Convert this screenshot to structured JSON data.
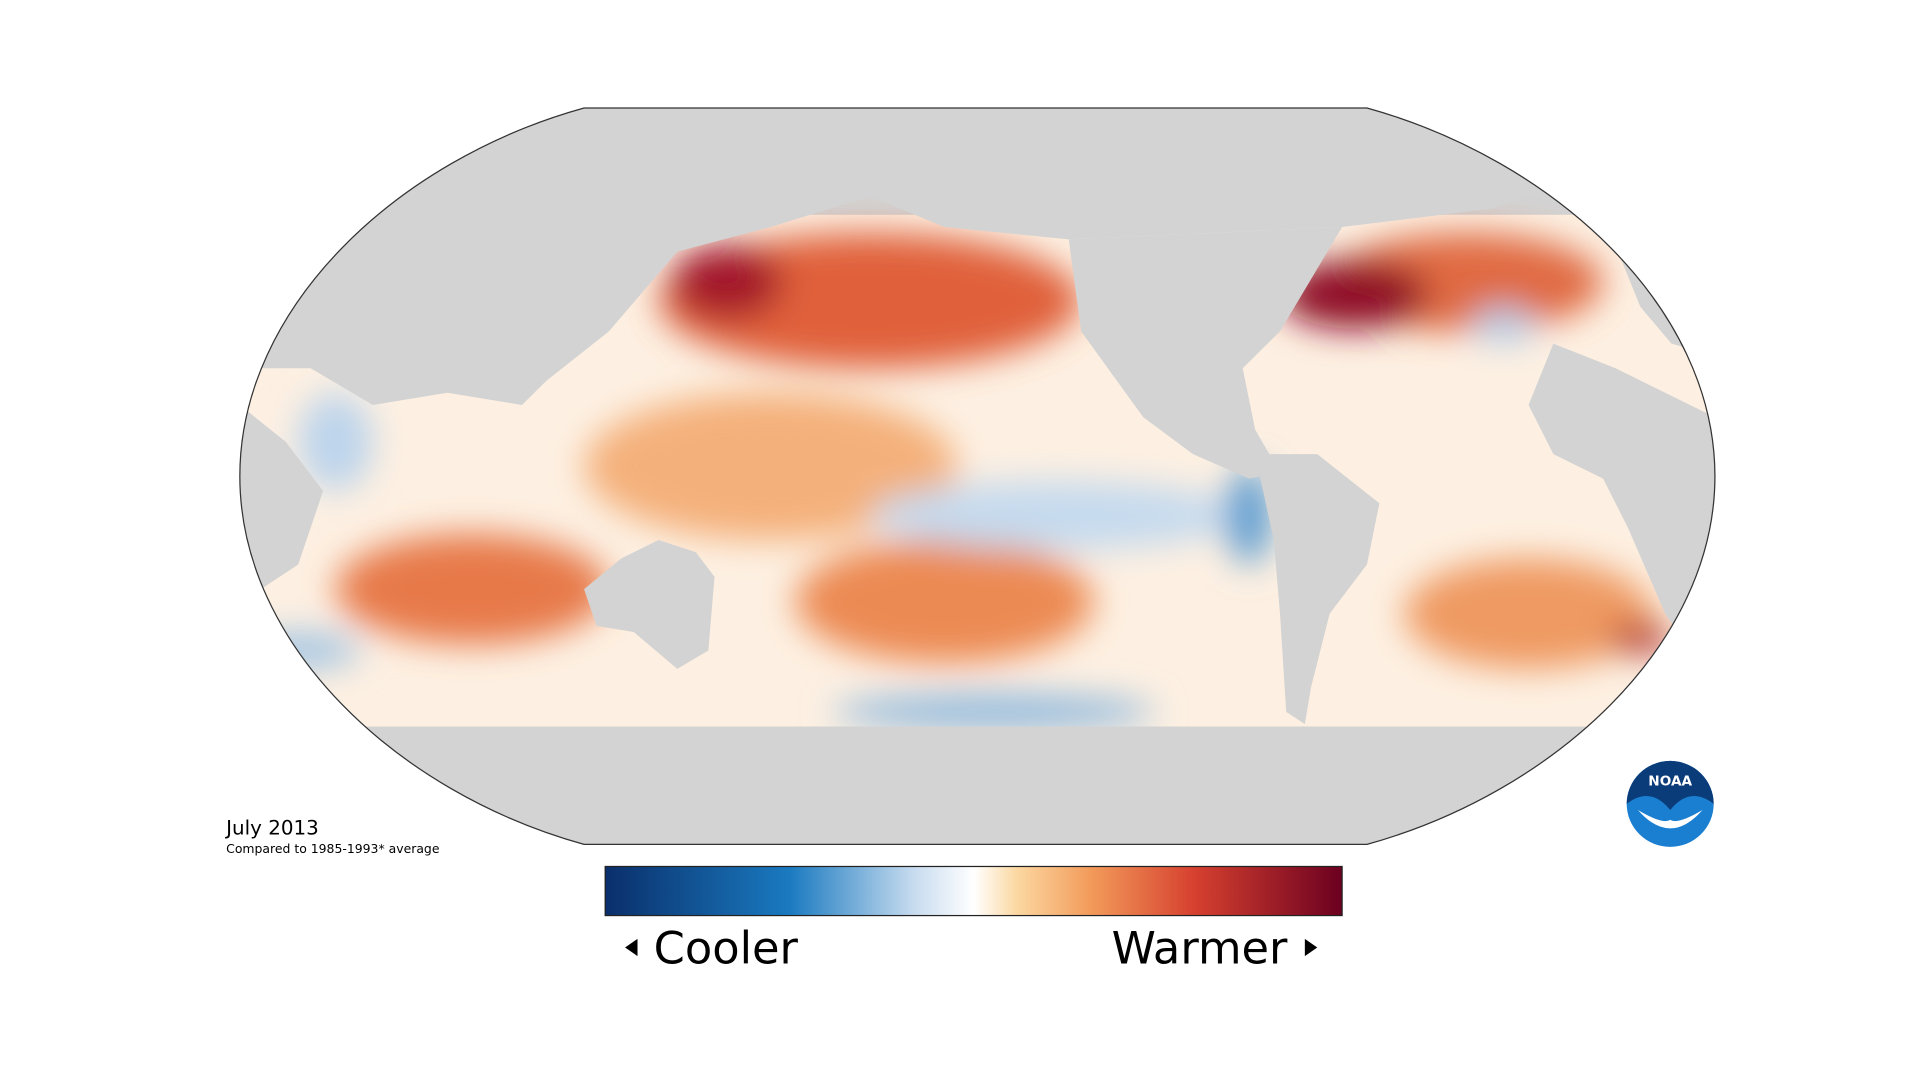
{
  "map": {
    "date": "July 2013",
    "baseline_note": "Compared to 1985-1993* average",
    "legend": {
      "low_label": "Cooler",
      "high_label": "Warmer"
    },
    "logo": "NOAA"
  }
}
